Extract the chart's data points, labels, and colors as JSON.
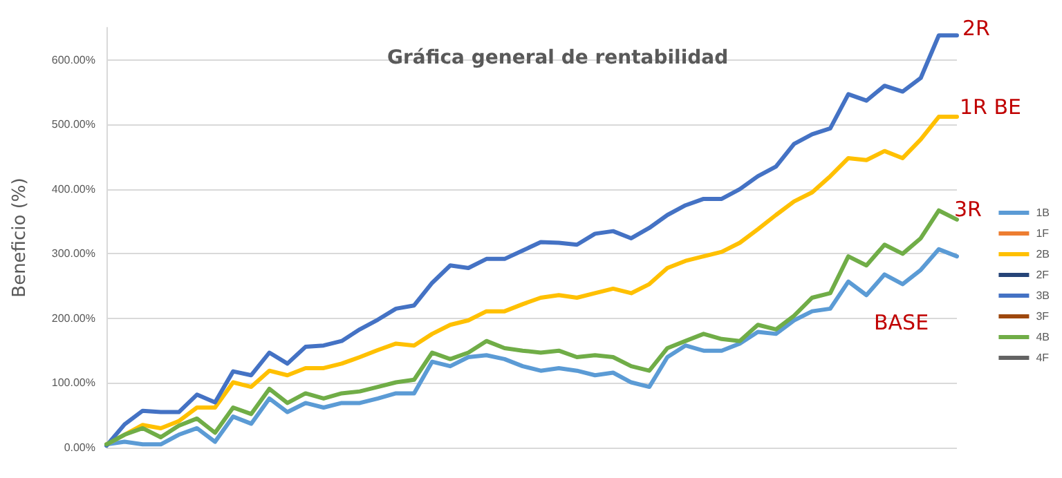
{
  "chart_data": {
    "type": "line",
    "title": "Gráfica general de rentabilidad",
    "ylabel": "Beneficio (%)",
    "categories": [
      null,
      null,
      null,
      null,
      null,
      null,
      null,
      null,
      null,
      null,
      null,
      null,
      null,
      null,
      null,
      null,
      null,
      null,
      null,
      null,
      null,
      null,
      null,
      null,
      null,
      null,
      null,
      null,
      null,
      null,
      null,
      null,
      null,
      null,
      null,
      null,
      null,
      null,
      null,
      null,
      null,
      null,
      null,
      null,
      null,
      null,
      null,
      null
    ],
    "series": [
      {
        "name": "1B",
        "color": "#5b9bd5",
        "values": [
          5,
          9,
          5,
          5,
          20,
          30,
          9,
          48,
          37,
          76,
          55,
          69,
          62,
          69,
          69,
          76,
          84,
          84,
          133,
          126,
          140,
          143,
          137,
          126,
          119,
          123,
          119,
          112,
          116,
          101,
          94,
          140,
          158,
          150,
          150,
          161,
          179,
          176,
          197,
          211,
          215,
          257,
          236,
          268,
          253,
          275,
          307,
          296
        ]
      },
      {
        "name": "1F",
        "color": "#ed7d31",
        "values": [
          null,
          null,
          null,
          null,
          null,
          null,
          null,
          null,
          null,
          null,
          null,
          null,
          null,
          null,
          null,
          null,
          null,
          null,
          null,
          null,
          null,
          null,
          null,
          null,
          null,
          null,
          null,
          null,
          null,
          null,
          null,
          null,
          null,
          null,
          null,
          null,
          null,
          null,
          null,
          null,
          null,
          null,
          null,
          null,
          null,
          null,
          null,
          null
        ]
      },
      {
        "name": "2B",
        "color": "#ffc000",
        "values": [
          5,
          20,
          35,
          30,
          41,
          62,
          62,
          101,
          94,
          119,
          112,
          123,
          123,
          130,
          140,
          151,
          161,
          158,
          176,
          190,
          197,
          211,
          211,
          222,
          232,
          236,
          232,
          239,
          246,
          239,
          253,
          278,
          289,
          296,
          303,
          317,
          338,
          360,
          381,
          395,
          420,
          448,
          445,
          459,
          448,
          477,
          512,
          512
        ]
      },
      {
        "name": "2F",
        "color": "#264478",
        "values": [
          null,
          null,
          null,
          null,
          null,
          null,
          null,
          null,
          null,
          null,
          null,
          null,
          null,
          null,
          null,
          null,
          null,
          null,
          null,
          null,
          null,
          null,
          null,
          null,
          null,
          null,
          null,
          null,
          null,
          null,
          null,
          null,
          null,
          null,
          null,
          null,
          null,
          null,
          null,
          null,
          null,
          null,
          null,
          null,
          null,
          null,
          null,
          null
        ]
      },
      {
        "name": "3B",
        "color": "#4472c4",
        "values": [
          3,
          36,
          57,
          55,
          55,
          82,
          70,
          118,
          112,
          147,
          130,
          156,
          158,
          165,
          183,
          198,
          215,
          220,
          255,
          282,
          278,
          292,
          292,
          305,
          318,
          317,
          314,
          331,
          335,
          324,
          340,
          360,
          375,
          385,
          385,
          400,
          420,
          435,
          470,
          485,
          494,
          547,
          537,
          560,
          551,
          572,
          638,
          638
        ]
      },
      {
        "name": "3F",
        "color": "#9e480e",
        "values": [
          null,
          null,
          null,
          null,
          null,
          null,
          null,
          null,
          null,
          null,
          null,
          null,
          null,
          null,
          null,
          null,
          null,
          null,
          null,
          null,
          null,
          null,
          null,
          null,
          null,
          null,
          null,
          null,
          null,
          null,
          null,
          null,
          null,
          null,
          null,
          null,
          null,
          null,
          null,
          null,
          null,
          null,
          null,
          null,
          null,
          null,
          null,
          null
        ]
      },
      {
        "name": "4B",
        "color": "#70ad47",
        "values": [
          5,
          20,
          30,
          16,
          34,
          45,
          23,
          62,
          52,
          91,
          69,
          84,
          76,
          84,
          87,
          94,
          101,
          105,
          147,
          137,
          147,
          165,
          154,
          150,
          147,
          150,
          140,
          143,
          140,
          126,
          119,
          154,
          165,
          176,
          168,
          165,
          190,
          183,
          204,
          232,
          239,
          296,
          282,
          314,
          300,
          324,
          367,
          353
        ]
      },
      {
        "name": "4F",
        "color": "#636363",
        "values": [
          null,
          null,
          null,
          null,
          null,
          null,
          null,
          null,
          null,
          null,
          null,
          null,
          null,
          null,
          null,
          null,
          null,
          null,
          null,
          null,
          null,
          null,
          null,
          null,
          null,
          null,
          null,
          null,
          null,
          null,
          null,
          null,
          null,
          null,
          null,
          null,
          null,
          null,
          null,
          null,
          null,
          null,
          null,
          null,
          null,
          null,
          null,
          null
        ]
      }
    ],
    "ylim": [
      0,
      650
    ],
    "yticks": [
      {
        "value": 0,
        "label": "0.00%"
      },
      {
        "value": 100,
        "label": "100.00%"
      },
      {
        "value": 200,
        "label": "200.00%"
      },
      {
        "value": 300,
        "label": "300.00%"
      },
      {
        "value": 400,
        "label": "400.00%"
      },
      {
        "value": 500,
        "label": "500.00%"
      },
      {
        "value": 600,
        "label": "600.00%"
      }
    ],
    "annotations": [
      "2R",
      "1R BE",
      "3R",
      "BASE"
    ],
    "grid": "y",
    "legend": "right",
    "tick_labels": "y",
    "marker": "none",
    "line_style": "solid"
  }
}
